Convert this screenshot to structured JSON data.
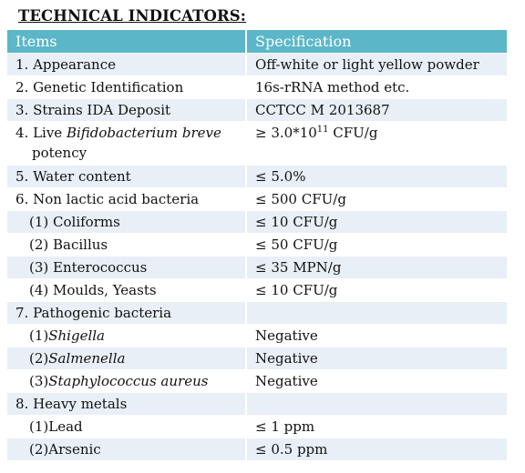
{
  "title": "TECHNICAL INDICATORS:",
  "headers": {
    "items": "Items",
    "spec": "Specification"
  },
  "rows": {
    "r1": {
      "item": "1. Appearance",
      "spec": "Off-white or light yellow powder"
    },
    "r2": {
      "item": "2. Genetic Identification",
      "spec": "16s-rRNA method etc."
    },
    "r3": {
      "item": "3. Strains IDA Deposit",
      "spec": "CCTCC M 2013687"
    },
    "r4": {
      "item_prefix": "4. Live ",
      "item_italic": "Bifidobacterium breve",
      "item_suffix": "potency",
      "spec_base": "≥ 3.0*10",
      "spec_exp": "11",
      "spec_unit": " CFU/g"
    },
    "r5": {
      "item": "5. Water content",
      "spec": "≤ 5.0%"
    },
    "r6": {
      "item": "6. Non lactic acid bacteria",
      "spec": "≤ 500 CFU/g"
    },
    "r6a": {
      "item": "(1) Coliforms",
      "spec": "≤ 10 CFU/g"
    },
    "r6b": {
      "item": "(2) Bacillus",
      "spec": "≤ 50 CFU/g"
    },
    "r6c": {
      "item": "(3) Enterococcus",
      "spec": "≤ 35 MPN/g"
    },
    "r6d": {
      "item": "(4) Moulds, Yeasts",
      "spec": "≤ 10 CFU/g"
    },
    "r7": {
      "item": "7. Pathogenic bacteria"
    },
    "r7a": {
      "prefix": "(1)",
      "italic": "Shigella",
      "spec": "Negative"
    },
    "r7b": {
      "prefix": "(2)",
      "italic": "Salmenella",
      "spec": "Negative"
    },
    "r7c": {
      "prefix": "(3)",
      "italic": "Staphylococcus aureus",
      "spec": "Negative"
    },
    "r8": {
      "item": "8. Heavy metals"
    },
    "r8a": {
      "item": "(1)Lead",
      "spec": "≤ 1 ppm"
    },
    "r8b": {
      "item": "(2)Arsenic",
      "spec": "≤ 0.5 ppm"
    }
  },
  "colors": {
    "header_bg": "#5bb7c8",
    "row_alt_bg": "#e8eff6"
  }
}
